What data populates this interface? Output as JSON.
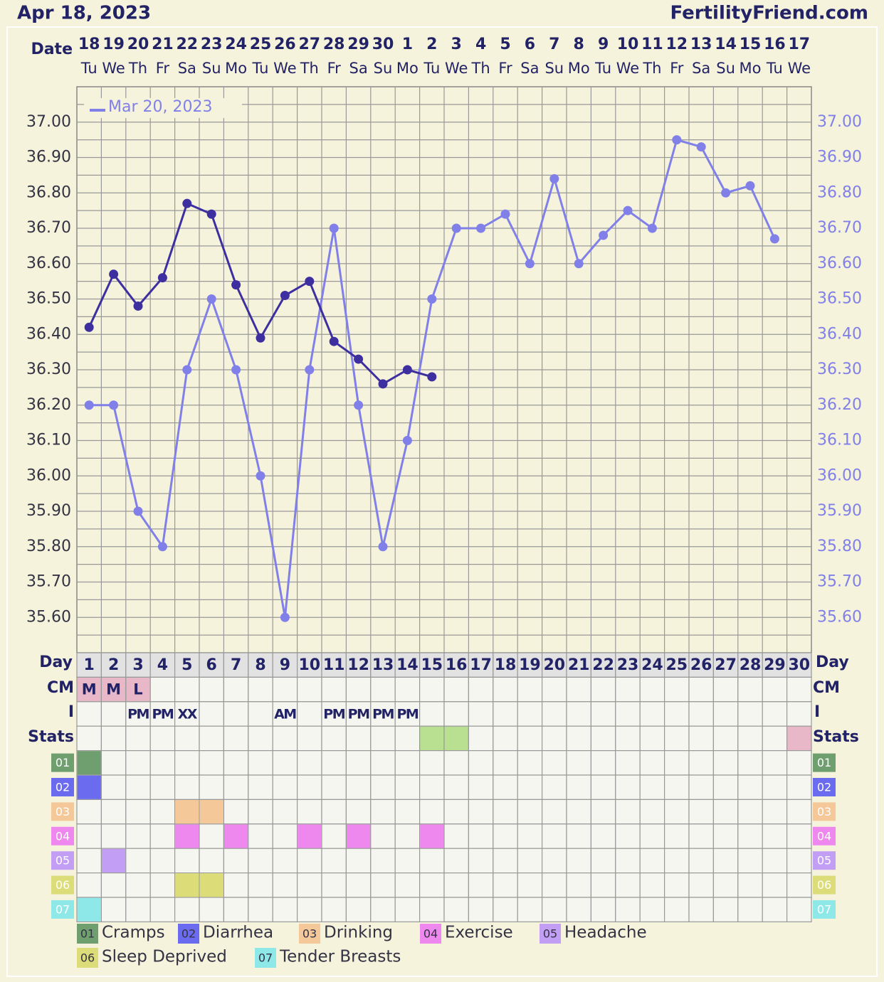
{
  "header": {
    "date": "Apr 18, 2023",
    "site": "FertilityFriend.com"
  },
  "chart_data": {
    "type": "line",
    "row_labels": {
      "date": "Date",
      "day": "Day",
      "cm": "CM",
      "intercourse": "I",
      "stats": "Stats"
    },
    "dates": [
      18,
      19,
      20,
      21,
      22,
      23,
      24,
      25,
      26,
      27,
      28,
      29,
      30,
      1,
      2,
      3,
      4,
      5,
      6,
      7,
      8,
      9,
      10,
      11,
      12,
      13,
      14,
      15,
      16,
      17
    ],
    "weekdays": [
      "Tu",
      "We",
      "Th",
      "Fr",
      "Sa",
      "Su",
      "Mo",
      "Tu",
      "We",
      "Th",
      "Fr",
      "Sa",
      "Su",
      "Mo",
      "Tu",
      "We",
      "Th",
      "Fr",
      "Sa",
      "Su",
      "Mo",
      "Tu",
      "We",
      "Th",
      "Fr",
      "Sa",
      "Su",
      "Mo",
      "Tu",
      "We"
    ],
    "days": [
      1,
      2,
      3,
      4,
      5,
      6,
      7,
      8,
      9,
      10,
      11,
      12,
      13,
      14,
      15,
      16,
      17,
      18,
      19,
      20,
      21,
      22,
      23,
      24,
      25,
      26,
      27,
      28,
      29,
      30
    ],
    "ylim": [
      35.5,
      37.1
    ],
    "yticks": [
      {
        "value": 35.6,
        "label": "35.60"
      },
      {
        "value": 35.7,
        "label": "35.70"
      },
      {
        "value": 35.8,
        "label": "35.80"
      },
      {
        "value": 35.9,
        "label": "35.90"
      },
      {
        "value": 36.0,
        "label": "36.00"
      },
      {
        "value": 36.1,
        "label": "36.10"
      },
      {
        "value": 36.2,
        "label": "36.20"
      },
      {
        "value": 36.3,
        "label": "36.30"
      },
      {
        "value": 36.4,
        "label": "36.40"
      },
      {
        "value": 36.5,
        "label": "36.50"
      },
      {
        "value": 36.6,
        "label": "36.60"
      },
      {
        "value": 36.7,
        "label": "36.70"
      },
      {
        "value": 36.8,
        "label": "36.80"
      },
      {
        "value": 36.9,
        "label": "36.90"
      },
      {
        "value": 37.0,
        "label": "37.00"
      }
    ],
    "grid": true,
    "series": [
      {
        "color": "#3d2f9f",
        "values": [
          36.42,
          36.57,
          36.48,
          36.56,
          36.77,
          36.74,
          36.54,
          36.39,
          36.51,
          36.55,
          36.38,
          36.33,
          36.26,
          36.3,
          36.28,
          null,
          null,
          null,
          null,
          null,
          null,
          null,
          null,
          null,
          null,
          null,
          null,
          null,
          null,
          null
        ]
      },
      {
        "name": "Mar 20, 2023",
        "color": "#8080e8",
        "values": [
          36.2,
          36.2,
          35.9,
          35.8,
          36.3,
          36.5,
          36.3,
          36.0,
          35.6,
          36.3,
          36.7,
          36.2,
          35.8,
          36.1,
          36.5,
          36.7,
          36.7,
          36.74,
          36.6,
          36.84,
          36.6,
          36.68,
          36.75,
          36.7,
          36.95,
          36.93,
          36.8,
          36.82,
          36.67,
          null
        ]
      }
    ],
    "cm": [
      "M",
      "M",
      "L",
      null,
      null,
      null,
      null,
      null,
      null,
      null,
      null,
      null,
      null,
      null,
      null,
      null,
      null,
      null,
      null,
      null,
      null,
      null,
      null,
      null,
      null,
      null,
      null,
      null,
      null,
      null
    ],
    "cm_color": "#e8b8c8",
    "intercourse": [
      null,
      null,
      "PM",
      "PM",
      "XX",
      null,
      null,
      null,
      "AM",
      null,
      "PM",
      "PM",
      "PM",
      "PM",
      null,
      null,
      null,
      null,
      null,
      null,
      null,
      null,
      null,
      null,
      null,
      null,
      null,
      null,
      null,
      null
    ],
    "stats_colors": [
      null,
      null,
      null,
      null,
      null,
      null,
      null,
      null,
      null,
      null,
      null,
      null,
      null,
      null,
      "#b8e090",
      "#b8e090",
      null,
      null,
      null,
      null,
      null,
      null,
      null,
      null,
      null,
      null,
      null,
      null,
      null,
      "#e8b8c8"
    ],
    "symptoms": [
      {
        "code": "01",
        "name": "Cramps",
        "color": "#6f9f6f",
        "days": [
          1
        ]
      },
      {
        "code": "02",
        "name": "Diarrhea",
        "color": "#6b6bf0",
        "days": [
          1
        ]
      },
      {
        "code": "03",
        "name": "Drinking",
        "color": "#f5c89a",
        "days": [
          5,
          6
        ]
      },
      {
        "code": "04",
        "name": "Exercise",
        "color": "#ee88ee",
        "days": [
          5,
          7,
          10,
          12,
          15
        ]
      },
      {
        "code": "05",
        "name": "Headache",
        "color": "#c39ef5",
        "days": [
          2
        ]
      },
      {
        "code": "06",
        "name": "Sleep Deprived",
        "color": "#dcdc78",
        "days": [
          5,
          6
        ]
      },
      {
        "code": "07",
        "name": "Tender Breasts",
        "color": "#8ee8e8",
        "days": [
          1
        ]
      }
    ]
  }
}
